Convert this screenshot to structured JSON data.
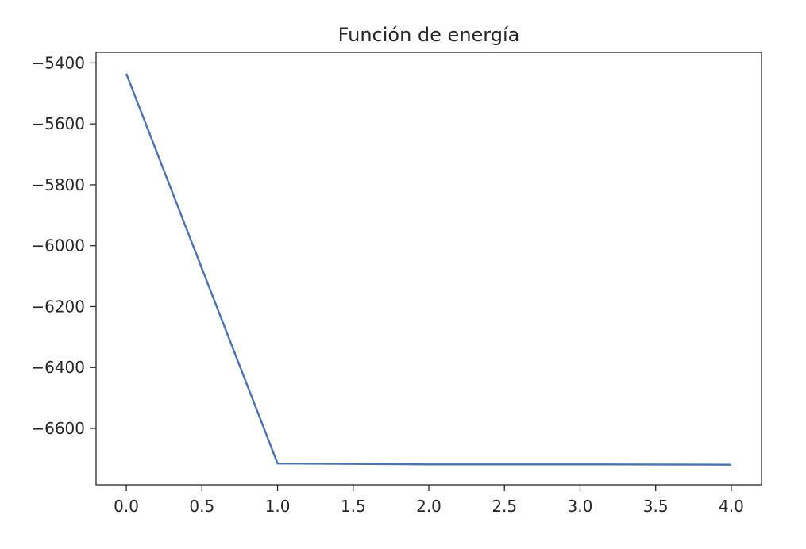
{
  "chart_data": {
    "type": "line",
    "title": "Función de energía",
    "xlabel": "",
    "ylabel": "",
    "xlim": [
      -0.2,
      4.2
    ],
    "ylim": [
      -6785,
      -5365
    ],
    "x_ticks": [
      0.0,
      0.5,
      1.0,
      1.5,
      2.0,
      2.5,
      3.0,
      3.5,
      4.0
    ],
    "x_tick_labels": [
      "0.0",
      "0.5",
      "1.0",
      "1.5",
      "2.0",
      "2.5",
      "3.0",
      "3.5",
      "4.0"
    ],
    "y_ticks": [
      -5400,
      -5600,
      -5800,
      -6000,
      -6200,
      -6400,
      -6600
    ],
    "y_tick_labels": [
      "−5400",
      "−5600",
      "−5800",
      "−6000",
      "−6200",
      "−6400",
      "−6600"
    ],
    "grid": false,
    "series": [
      {
        "x": [
          0,
          1,
          2,
          3,
          4
        ],
        "values": [
          -5435,
          -6715,
          -6718,
          -6718,
          -6719
        ],
        "color": "#4c72b0"
      }
    ]
  }
}
